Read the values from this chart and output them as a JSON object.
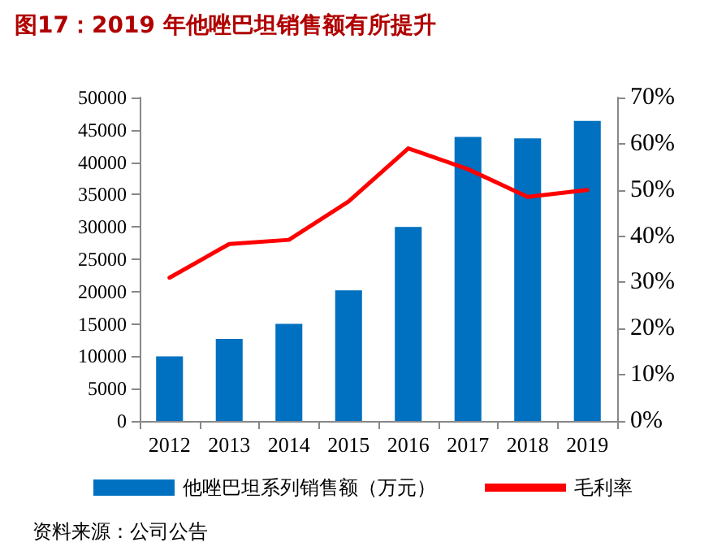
{
  "chart_data": {
    "type": "bar",
    "title": "图17：2019 年他唑巴坦销售额有所提升",
    "categories": [
      "2012",
      "2013",
      "2014",
      "2015",
      "2016",
      "2017",
      "2018",
      "2019"
    ],
    "series": [
      {
        "name": "他唑巴坦系列销售额（万元）",
        "color": "#0070c0",
        "values": [
          10000,
          12700,
          15000,
          20200,
          30000,
          43900,
          43700,
          46400
        ]
      },
      {
        "name": "毛利率",
        "type": "line",
        "axis": "y2",
        "color": "#ff0000",
        "values": [
          31,
          38.3,
          39.2,
          47.5,
          59,
          54.5,
          48.5,
          50
        ]
      }
    ],
    "ylim": [
      0,
      50000
    ],
    "yticks": [
      0,
      5000,
      10000,
      15000,
      20000,
      25000,
      30000,
      35000,
      40000,
      45000,
      50000
    ],
    "y2lim": [
      0,
      70
    ],
    "y2ticks": [
      {
        "value": 0,
        "label": "0%"
      },
      {
        "value": 10,
        "label": "10%"
      },
      {
        "value": 20,
        "label": "20%"
      },
      {
        "value": 30,
        "label": "30%"
      },
      {
        "value": 40,
        "label": "40%"
      },
      {
        "value": 50,
        "label": "50%"
      },
      {
        "value": 60,
        "label": "60%"
      },
      {
        "value": 70,
        "label": "70%"
      }
    ],
    "grid": false,
    "legend": "bottom",
    "marker": "none",
    "line_style": "solid",
    "annotations": [
      "资料来源：公司公告"
    ]
  }
}
